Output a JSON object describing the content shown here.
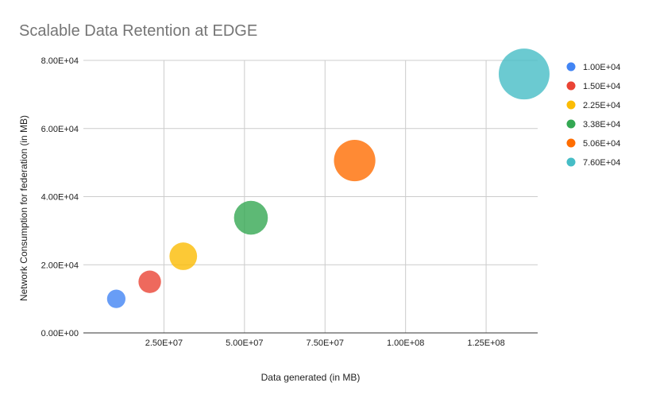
{
  "chart_data": {
    "type": "scatter",
    "title": "Scalable Data Retention at EDGE",
    "xlabel": "Data generated (in MB)",
    "ylabel": "Network Consumption for federation (in MB)",
    "xlim": [
      0,
      141000000
    ],
    "ylim": [
      0,
      80000
    ],
    "x_ticks": [
      {
        "value": 25000000,
        "label": "2.50E+07"
      },
      {
        "value": 50000000,
        "label": "5.00E+07"
      },
      {
        "value": 75000000,
        "label": "7.50E+07"
      },
      {
        "value": 100000000,
        "label": "1.00E+08"
      },
      {
        "value": 125000000,
        "label": "1.25E+08"
      }
    ],
    "y_ticks": [
      {
        "value": 0,
        "label": "0.00E+00"
      },
      {
        "value": 20000,
        "label": "2.00E+04"
      },
      {
        "value": 40000,
        "label": "4.00E+04"
      },
      {
        "value": 60000,
        "label": "6.00E+04"
      },
      {
        "value": 80000,
        "label": "8.00E+04"
      }
    ],
    "grid": true,
    "legend_position": "right",
    "series": [
      {
        "name": "1.00E+04",
        "x": 10200000,
        "y": 10000,
        "size": 10000,
        "color": "#4285f4"
      },
      {
        "name": "1.50E+04",
        "x": 20600000,
        "y": 15000,
        "size": 15000,
        "color": "#ea4335"
      },
      {
        "name": "2.25E+04",
        "x": 31000000,
        "y": 22500,
        "size": 22500,
        "color": "#fbbc04"
      },
      {
        "name": "3.38E+04",
        "x": 52000000,
        "y": 33800,
        "size": 33800,
        "color": "#34a853"
      },
      {
        "name": "5.06E+04",
        "x": 84200000,
        "y": 50600,
        "size": 50600,
        "color": "#ff6d01"
      },
      {
        "name": "7.60E+04",
        "x": 136800000,
        "y": 76000,
        "size": 76000,
        "color": "#46bdc6"
      }
    ]
  }
}
